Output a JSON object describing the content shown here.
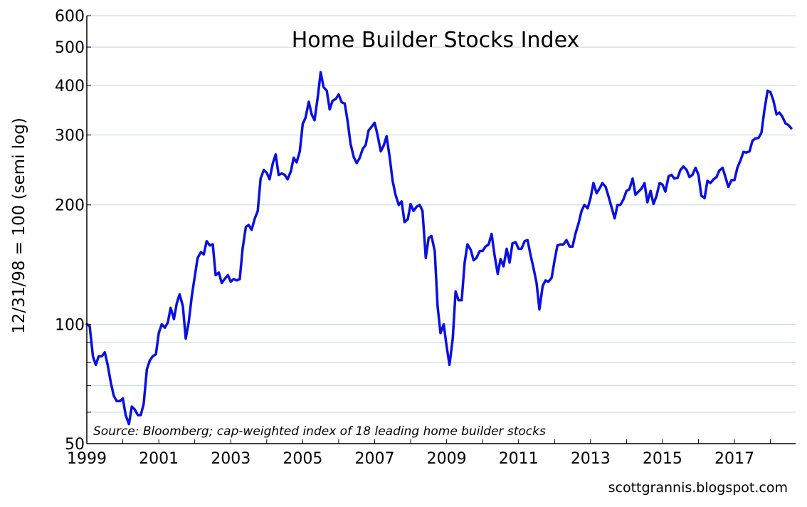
{
  "chart_data": {
    "type": "line",
    "title": "Home Builder Stocks Index",
    "ylabel": "12/31/98 = 100 (semi log)",
    "xlabel": "",
    "y_scale": "log",
    "ylim": [
      50,
      600
    ],
    "xlim": [
      1999.0,
      2018.7
    ],
    "y_ticks": [
      50,
      100,
      200,
      300,
      400,
      500,
      600
    ],
    "y_minor_ticks": [
      60,
      70,
      80,
      90
    ],
    "x_ticks": [
      "1999",
      "2001",
      "2003",
      "2005",
      "2007",
      "2009",
      "2011",
      "2013",
      "2015",
      "2017"
    ],
    "grid": "horizontal",
    "annotation": "Source: Bloomberg; cap-weighted index of 18 leading home builder stocks",
    "credit": "scottgrannis.blogspot.com",
    "line_color": "#0a10e0",
    "series": [
      {
        "x": [
          1999.0,
          1999.08,
          1999.17,
          1999.25,
          1999.33,
          1999.42,
          1999.5,
          1999.58,
          1999.67,
          1999.75,
          1999.83,
          1999.92,
          2000.0,
          2000.08,
          2000.17,
          2000.25,
          2000.33,
          2000.42,
          2000.5,
          2000.58,
          2000.67,
          2000.75,
          2000.83,
          2000.92,
          2001.0,
          2001.08,
          2001.17,
          2001.25,
          2001.33,
          2001.42,
          2001.5,
          2001.58,
          2001.67,
          2001.75,
          2001.83,
          2001.92,
          2002.0,
          2002.08,
          2002.17,
          2002.25,
          2002.33,
          2002.42,
          2002.5,
          2002.58,
          2002.67,
          2002.75,
          2002.83,
          2002.92,
          2003.0,
          2003.08,
          2003.17,
          2003.25,
          2003.33,
          2003.42,
          2003.5,
          2003.58,
          2003.67,
          2003.75,
          2003.83,
          2003.92,
          2004.0,
          2004.08,
          2004.17,
          2004.25,
          2004.33,
          2004.42,
          2004.5,
          2004.58,
          2004.67,
          2004.75,
          2004.83,
          2004.92,
          2005.0,
          2005.08,
          2005.17,
          2005.25,
          2005.33,
          2005.42,
          2005.5,
          2005.58,
          2005.67,
          2005.75,
          2005.83,
          2005.92,
          2006.0,
          2006.08,
          2006.17,
          2006.25,
          2006.33,
          2006.42,
          2006.5,
          2006.58,
          2006.67,
          2006.75,
          2006.83,
          2006.92,
          2007.0,
          2007.08,
          2007.17,
          2007.25,
          2007.33,
          2007.42,
          2007.5,
          2007.58,
          2007.67,
          2007.75,
          2007.83,
          2007.92,
          2008.0,
          2008.08,
          2008.17,
          2008.25,
          2008.33,
          2008.42,
          2008.5,
          2008.58,
          2008.67,
          2008.75,
          2008.83,
          2008.92,
          2009.0,
          2009.08,
          2009.17,
          2009.25,
          2009.33,
          2009.42,
          2009.5,
          2009.58,
          2009.67,
          2009.75,
          2009.83,
          2009.92,
          2010.0,
          2010.08,
          2010.17,
          2010.25,
          2010.33,
          2010.42,
          2010.5,
          2010.58,
          2010.67,
          2010.75,
          2010.83,
          2010.92,
          2011.0,
          2011.08,
          2011.17,
          2011.25,
          2011.33,
          2011.42,
          2011.5,
          2011.58,
          2011.67,
          2011.75,
          2011.83,
          2011.92,
          2012.0,
          2012.08,
          2012.17,
          2012.25,
          2012.33,
          2012.42,
          2012.5,
          2012.58,
          2012.67,
          2012.75,
          2012.83,
          2012.92,
          2013.0,
          2013.08,
          2013.17,
          2013.25,
          2013.33,
          2013.42,
          2013.5,
          2013.58,
          2013.67,
          2013.75,
          2013.83,
          2013.92,
          2014.0,
          2014.08,
          2014.17,
          2014.25,
          2014.33,
          2014.42,
          2014.5,
          2014.58,
          2014.67,
          2014.75,
          2014.83,
          2014.92,
          2015.0,
          2015.08,
          2015.17,
          2015.25,
          2015.33,
          2015.42,
          2015.5,
          2015.58,
          2015.67,
          2015.75,
          2015.83,
          2015.92,
          2016.0,
          2016.08,
          2016.17,
          2016.25,
          2016.33,
          2016.42,
          2016.5,
          2016.58,
          2016.67,
          2016.75,
          2016.83,
          2016.92,
          2017.0,
          2017.08,
          2017.17,
          2017.25,
          2017.33,
          2017.42,
          2017.5,
          2017.58,
          2017.67,
          2017.75,
          2017.83,
          2017.92,
          2018.0,
          2018.08,
          2018.17,
          2018.25,
          2018.33,
          2018.42,
          2018.5,
          2018.58
        ],
        "y": [
          100,
          99,
          83,
          79,
          83,
          83,
          85,
          79,
          71,
          66,
          64,
          64,
          65,
          59,
          56,
          62,
          61,
          59,
          59,
          63,
          77,
          81,
          83,
          84,
          95,
          100,
          98,
          101,
          110,
          103,
          113,
          119,
          111,
          92,
          101,
          118,
          132,
          147,
          152,
          150,
          162,
          158,
          159,
          133,
          135,
          127,
          130,
          133,
          128,
          130,
          129,
          130,
          155,
          176,
          178,
          173,
          185,
          193,
          233,
          245,
          241,
          232,
          255,
          268,
          238,
          240,
          238,
          232,
          243,
          263,
          256,
          273,
          320,
          332,
          364,
          338,
          327,
          375,
          432,
          396,
          388,
          348,
          366,
          370,
          380,
          363,
          360,
          325,
          285,
          264,
          255,
          262,
          277,
          283,
          308,
          315,
          322,
          300,
          273,
          282,
          298,
          263,
          230,
          212,
          200,
          204,
          181,
          184,
          201,
          193,
          198,
          200,
          193,
          147,
          165,
          167,
          153,
          111,
          95,
          100,
          88,
          79,
          92,
          121,
          115,
          115,
          143,
          159,
          154,
          145,
          147,
          153,
          153,
          157,
          159,
          169,
          150,
          134,
          146,
          140,
          155,
          143,
          160,
          161,
          155,
          155,
          162,
          163,
          150,
          138,
          127,
          109,
          125,
          129,
          128,
          131,
          145,
          158,
          159,
          159,
          163,
          157,
          157,
          169,
          180,
          193,
          200,
          196,
          208,
          227,
          214,
          220,
          227,
          222,
          210,
          198,
          185,
          200,
          200,
          207,
          217,
          219,
          233,
          212,
          216,
          220,
          227,
          203,
          217,
          201,
          210,
          227,
          225,
          216,
          236,
          238,
          233,
          234,
          245,
          250,
          245,
          235,
          238,
          248,
          238,
          211,
          208,
          230,
          227,
          232,
          235,
          244,
          248,
          235,
          222,
          231,
          231,
          248,
          259,
          272,
          271,
          273,
          290,
          294,
          295,
          304,
          345,
          388,
          385,
          367,
          338,
          342,
          334,
          321,
          318,
          312
        ]
      }
    ]
  }
}
